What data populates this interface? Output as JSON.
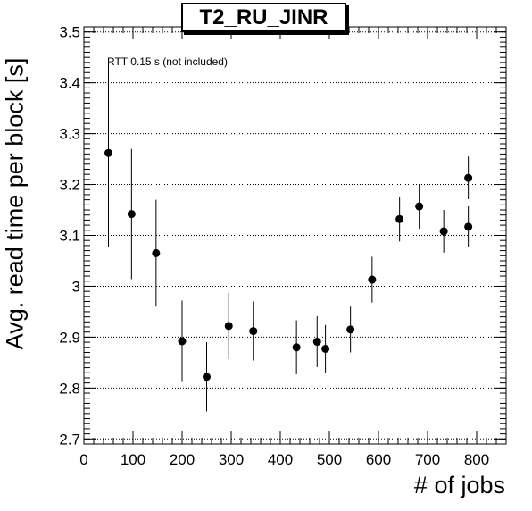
{
  "chart_data": {
    "type": "scatter",
    "title": "T2_RU_JINR",
    "xlabel": "# of jobs",
    "ylabel": "Avg. read time per block [s]",
    "annotation": "RTT 0.15 s (not included)",
    "xlim": [
      0,
      860
    ],
    "ylim": [
      2.69,
      3.51
    ],
    "x_ticks": [
      0,
      100,
      200,
      300,
      400,
      500,
      600,
      700,
      800
    ],
    "x_tick_labels": [
      "0",
      "100",
      "200",
      "300",
      "400",
      "500",
      "600",
      "700",
      "800"
    ],
    "y_ticks": [
      2.7,
      2.8,
      2.9,
      3.0,
      3.1,
      3.2,
      3.3,
      3.4,
      3.5
    ],
    "y_tick_labels": [
      "2.7",
      "2.8",
      "2.9",
      "3",
      "3.1",
      "3.2",
      "3.3",
      "3.4",
      "3.5"
    ],
    "grid": "horizontal dotted",
    "points": [
      {
        "x": 50,
        "y": 3.262,
        "err": 0.185
      },
      {
        "x": 97,
        "y": 3.142,
        "err": 0.128
      },
      {
        "x": 147,
        "y": 3.065,
        "err": 0.105
      },
      {
        "x": 200,
        "y": 2.892,
        "err": 0.08
      },
      {
        "x": 250,
        "y": 2.822,
        "err": 0.068
      },
      {
        "x": 295,
        "y": 2.922,
        "err": 0.065
      },
      {
        "x": 345,
        "y": 2.912,
        "err": 0.058
      },
      {
        "x": 433,
        "y": 2.88,
        "err": 0.053
      },
      {
        "x": 475,
        "y": 2.891,
        "err": 0.05
      },
      {
        "x": 492,
        "y": 2.877,
        "err": 0.047
      },
      {
        "x": 543,
        "y": 2.915,
        "err": 0.045
      },
      {
        "x": 587,
        "y": 3.013,
        "err": 0.045
      },
      {
        "x": 643,
        "y": 3.132,
        "err": 0.044
      },
      {
        "x": 683,
        "y": 3.157,
        "err": 0.044
      },
      {
        "x": 733,
        "y": 3.108,
        "err": 0.042
      },
      {
        "x": 783,
        "y": 3.117,
        "err": 0.04
      },
      {
        "x": 783,
        "y": 3.213,
        "err": 0.042
      }
    ]
  }
}
